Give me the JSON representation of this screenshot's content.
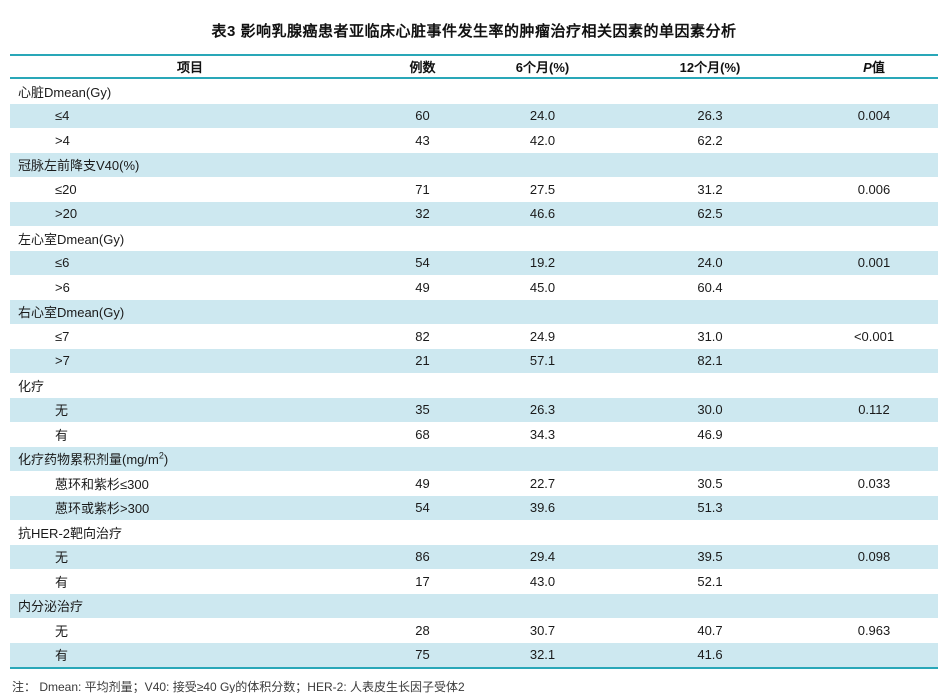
{
  "colors": {
    "accent": "#29a7b8",
    "row_highlight": "#cde8f0"
  },
  "table": {
    "title": "表3 影响乳腺癌患者亚临床心脏事件发生率的肿瘤治疗相关因素的单因素分析",
    "columns": [
      {
        "label": "项目"
      },
      {
        "label": "例数"
      },
      {
        "label": "6个月(%)"
      },
      {
        "label": "12个月(%)"
      },
      {
        "italic": "P",
        "label": "值"
      }
    ],
    "rows": [
      {
        "type": "group",
        "label": "心脏Dmean(Gy)",
        "n": "",
        "m6": "",
        "m12": "",
        "p": ""
      },
      {
        "type": "sub",
        "label": "≤4",
        "n": "60",
        "m6": "24.0",
        "m12": "26.3",
        "p": "0.004"
      },
      {
        "type": "sub",
        "label": ">4",
        "n": "43",
        "m6": "42.0",
        "m12": "62.2",
        "p": ""
      },
      {
        "type": "group",
        "label": "冠脉左前降支V40(%)",
        "n": "",
        "m6": "",
        "m12": "",
        "p": ""
      },
      {
        "type": "sub",
        "label": "≤20",
        "n": "71",
        "m6": "27.5",
        "m12": "31.2",
        "p": "0.006"
      },
      {
        "type": "sub",
        "label": ">20",
        "n": "32",
        "m6": "46.6",
        "m12": "62.5",
        "p": ""
      },
      {
        "type": "group",
        "label": "左心室Dmean(Gy)",
        "n": "",
        "m6": "",
        "m12": "",
        "p": ""
      },
      {
        "type": "sub",
        "label": "≤6",
        "n": "54",
        "m6": "19.2",
        "m12": "24.0",
        "p": "0.001"
      },
      {
        "type": "sub",
        "label": ">6",
        "n": "49",
        "m6": "45.0",
        "m12": "60.4",
        "p": ""
      },
      {
        "type": "group",
        "label": "右心室Dmean(Gy)",
        "n": "",
        "m6": "",
        "m12": "",
        "p": ""
      },
      {
        "type": "sub",
        "label": "≤7",
        "n": "82",
        "m6": "24.9",
        "m12": "31.0",
        "p": "<0.001"
      },
      {
        "type": "sub",
        "label": ">7",
        "n": "21",
        "m6": "57.1",
        "m12": "82.1",
        "p": ""
      },
      {
        "type": "group",
        "label": "化疗",
        "n": "",
        "m6": "",
        "m12": "",
        "p": ""
      },
      {
        "type": "sub",
        "label": "无",
        "n": "35",
        "m6": "26.3",
        "m12": "30.0",
        "p": "0.112"
      },
      {
        "type": "sub",
        "label": "有",
        "n": "68",
        "m6": "34.3",
        "m12": "46.9",
        "p": ""
      },
      {
        "type": "group",
        "label": "化疗药物累积剂量(mg/m",
        "sup": "2",
        "label_post": ")",
        "n": "",
        "m6": "",
        "m12": "",
        "p": ""
      },
      {
        "type": "sub",
        "label": "蒽环和紫杉≤300",
        "n": "49",
        "m6": "22.7",
        "m12": "30.5",
        "p": "0.033"
      },
      {
        "type": "sub",
        "label": "蒽环或紫杉>300",
        "n": "54",
        "m6": "39.6",
        "m12": "51.3",
        "p": ""
      },
      {
        "type": "group",
        "label": "抗HER-2靶向治疗",
        "n": "",
        "m6": "",
        "m12": "",
        "p": ""
      },
      {
        "type": "sub",
        "label": "无",
        "n": "86",
        "m6": "29.4",
        "m12": "39.5",
        "p": "0.098"
      },
      {
        "type": "sub",
        "label": "有",
        "n": "17",
        "m6": "43.0",
        "m12": "52.1",
        "p": ""
      },
      {
        "type": "group",
        "label": "内分泌治疗",
        "n": "",
        "m6": "",
        "m12": "",
        "p": ""
      },
      {
        "type": "sub",
        "label": "无",
        "n": "28",
        "m6": "30.7",
        "m12": "40.7",
        "p": "0.963"
      },
      {
        "type": "sub",
        "label": "有",
        "n": "75",
        "m6": "32.1",
        "m12": "41.6",
        "p": ""
      }
    ],
    "footnote": "注：  Dmean: 平均剂量；V40: 接受≥40 Gy的体积分数；HER-2: 人表皮生长因子受体2"
  }
}
